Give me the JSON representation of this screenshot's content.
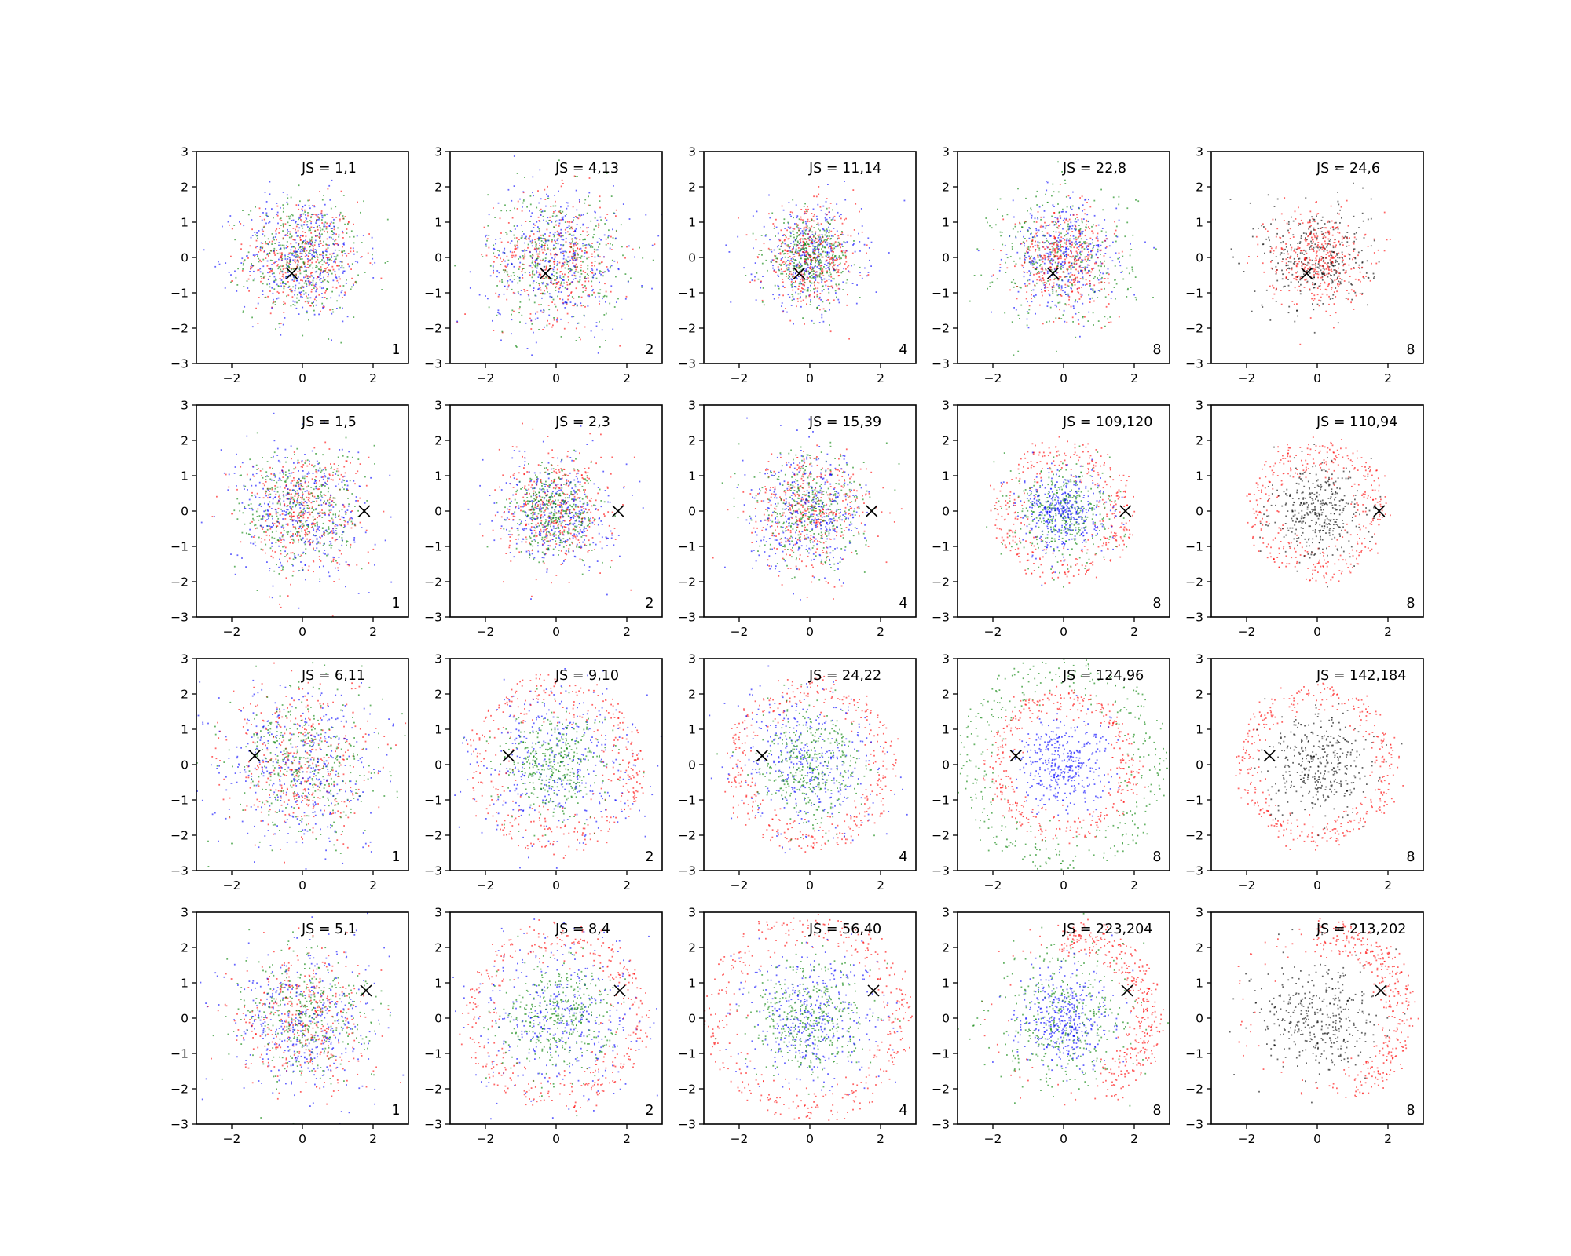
{
  "chart_data": {
    "type": "scatter",
    "layout": {
      "rows": 4,
      "cols": 5
    },
    "xlim": [
      -3,
      3
    ],
    "ylim": [
      -3,
      3
    ],
    "xticks": [
      -2,
      0,
      2
    ],
    "yticks": [
      -3,
      -2,
      -1,
      0,
      1,
      2,
      3
    ],
    "tick_labels": {
      "x": [
        "−2",
        "0",
        "2"
      ],
      "y": [
        "−3",
        "−2",
        "−1",
        "0",
        "1",
        "2",
        "3"
      ]
    },
    "grid": false,
    "colors": {
      "red": "#ff0000",
      "green": "#008000",
      "blue": "#0000ff",
      "black": "#000000"
    },
    "row_markers": [
      {
        "x": -0.3,
        "y": -0.45
      },
      {
        "x": 1.75,
        "y": 0.0
      },
      {
        "x": -1.35,
        "y": 0.25
      },
      {
        "x": 1.8,
        "y": 0.78
      }
    ],
    "panels": [
      {
        "row": 0,
        "col": 0,
        "js": "JS = 1,1",
        "k": "1",
        "distributions": [
          {
            "color": "red",
            "shape": "disk",
            "radius": 1.85
          },
          {
            "color": "green",
            "shape": "disk",
            "radius": 1.85
          },
          {
            "color": "blue",
            "shape": "disk",
            "radius": 2.05
          }
        ]
      },
      {
        "row": 0,
        "col": 1,
        "js": "JS = 4,13",
        "k": "2",
        "distributions": [
          {
            "color": "red",
            "shape": "disk",
            "radius": 2.0
          },
          {
            "color": "green",
            "shape": "disk",
            "radius": 2.2
          },
          {
            "color": "blue",
            "shape": "disk",
            "radius": 2.4
          }
        ]
      },
      {
        "row": 0,
        "col": 2,
        "js": "JS = 11,14",
        "k": "4",
        "distributions": [
          {
            "color": "blue",
            "shape": "disk",
            "radius": 1.7
          },
          {
            "color": "red",
            "shape": "disk",
            "radius": 1.55
          },
          {
            "color": "green",
            "shape": "disk",
            "radius": 1.25
          }
        ]
      },
      {
        "row": 0,
        "col": 3,
        "js": "JS = 22,8",
        "k": "8",
        "distributions": [
          {
            "color": "green",
            "shape": "disk",
            "radius": 2.3
          },
          {
            "color": "blue",
            "shape": "disk",
            "radius": 1.8
          },
          {
            "color": "red",
            "shape": "disk",
            "radius": 1.55
          }
        ]
      },
      {
        "row": 0,
        "col": 4,
        "js": "JS = 24,6",
        "k": "8",
        "distributions": [
          {
            "color": "black",
            "shape": "disk",
            "radius": 1.75
          },
          {
            "color": "red",
            "shape": "disk",
            "radius": 1.6
          }
        ]
      },
      {
        "row": 1,
        "col": 0,
        "js": "JS = 1,5",
        "k": "1",
        "distributions": [
          {
            "color": "red",
            "shape": "disk",
            "radius": 2.0
          },
          {
            "color": "green",
            "shape": "disk",
            "radius": 2.0
          },
          {
            "color": "blue",
            "shape": "disk",
            "radius": 2.2
          }
        ]
      },
      {
        "row": 1,
        "col": 1,
        "js": "JS = 2,3",
        "k": "2",
        "distributions": [
          {
            "color": "red",
            "shape": "disk",
            "radius": 1.8
          },
          {
            "color": "blue",
            "shape": "disk",
            "radius": 1.75
          },
          {
            "color": "green",
            "shape": "disk",
            "radius": 1.45
          }
        ]
      },
      {
        "row": 1,
        "col": 2,
        "js": "JS = 15,39",
        "k": "4",
        "distributions": [
          {
            "color": "red",
            "shape": "disk",
            "radius": 1.95
          },
          {
            "color": "green",
            "shape": "disk",
            "radius": 1.8
          },
          {
            "color": "blue",
            "shape": "disk",
            "radius": 1.9
          }
        ]
      },
      {
        "row": 1,
        "col": 3,
        "js": "JS = 109,120",
        "k": "8",
        "distributions": [
          {
            "color": "red",
            "shape": "ring",
            "inner": 0.9,
            "outer": 1.95
          },
          {
            "color": "green",
            "shape": "disk",
            "radius": 1.6
          },
          {
            "color": "blue",
            "shape": "disk",
            "radius": 1.3
          }
        ]
      },
      {
        "row": 1,
        "col": 4,
        "js": "JS = 110,94",
        "k": "8",
        "distributions": [
          {
            "color": "red",
            "shape": "ring",
            "inner": 0.9,
            "outer": 1.95
          },
          {
            "color": "black",
            "shape": "disk",
            "radius": 1.45
          }
        ]
      },
      {
        "row": 2,
        "col": 0,
        "js": "JS = 6,11",
        "k": "1",
        "distributions": [
          {
            "color": "red",
            "shape": "disk",
            "radius": 2.4
          },
          {
            "color": "green",
            "shape": "disk",
            "radius": 2.4
          },
          {
            "color": "blue",
            "shape": "disk",
            "radius": 2.6
          }
        ]
      },
      {
        "row": 2,
        "col": 1,
        "js": "JS = 9,10",
        "k": "2",
        "distributions": [
          {
            "color": "blue",
            "shape": "disk",
            "radius": 2.75
          },
          {
            "color": "red",
            "shape": "ring",
            "inner": 1.2,
            "outer": 2.5
          },
          {
            "color": "green",
            "shape": "disk",
            "radius": 1.7
          }
        ]
      },
      {
        "row": 2,
        "col": 2,
        "js": "JS = 24,22",
        "k": "4",
        "distributions": [
          {
            "color": "red",
            "shape": "ring",
            "inner": 1.5,
            "outer": 2.4
          },
          {
            "color": "blue",
            "shape": "disk",
            "radius": 2.3
          },
          {
            "color": "green",
            "shape": "disk",
            "radius": 1.7
          }
        ]
      },
      {
        "row": 2,
        "col": 3,
        "js": "JS = 124,96",
        "k": "8",
        "distributions": [
          {
            "color": "green",
            "shape": "ring",
            "inner": 1.7,
            "outer": 3.0
          },
          {
            "color": "red",
            "shape": "ring",
            "inner": 1.3,
            "outer": 2.1
          },
          {
            "color": "blue",
            "shape": "disk",
            "radius": 1.5
          }
        ]
      },
      {
        "row": 2,
        "col": 4,
        "js": "JS = 142,184",
        "k": "8",
        "distributions": [
          {
            "color": "red",
            "shape": "ring",
            "inner": 1.5,
            "outer": 2.2
          },
          {
            "color": "black",
            "shape": "disk",
            "radius": 1.6
          }
        ]
      },
      {
        "row": 3,
        "col": 0,
        "js": "JS = 5,1",
        "k": "1",
        "distributions": [
          {
            "color": "red",
            "shape": "disk",
            "radius": 2.2
          },
          {
            "color": "green",
            "shape": "disk",
            "radius": 2.2
          },
          {
            "color": "blue",
            "shape": "disk",
            "radius": 2.4
          }
        ]
      },
      {
        "row": 3,
        "col": 1,
        "js": "JS = 8,4",
        "k": "2",
        "distributions": [
          {
            "color": "blue",
            "shape": "disk",
            "radius": 2.8
          },
          {
            "color": "red",
            "shape": "ring",
            "inner": 1.4,
            "outer": 2.6
          },
          {
            "color": "green",
            "shape": "disk",
            "radius": 1.8
          }
        ]
      },
      {
        "row": 3,
        "col": 2,
        "js": "JS = 56,40",
        "k": "4",
        "distributions": [
          {
            "color": "red",
            "shape": "ring",
            "inner": 1.9,
            "outer": 2.9
          },
          {
            "color": "blue",
            "shape": "disk",
            "radius": 2.2
          },
          {
            "color": "green",
            "shape": "disk",
            "radius": 1.9
          }
        ]
      },
      {
        "row": 3,
        "col": 3,
        "js": "JS = 223,204",
        "k": "8",
        "distributions": [
          {
            "color": "red",
            "shape": "crescent",
            "inner": 1.8,
            "outer": 2.6
          },
          {
            "color": "green",
            "shape": "disk",
            "radius": 2.3
          },
          {
            "color": "blue",
            "shape": "disk",
            "radius": 1.6
          }
        ]
      },
      {
        "row": 3,
        "col": 4,
        "js": "JS = 213,202",
        "k": "8",
        "distributions": [
          {
            "color": "red",
            "shape": "crescent",
            "inner": 1.8,
            "outer": 2.6
          },
          {
            "color": "black",
            "shape": "disk",
            "radius": 1.8
          }
        ]
      }
    ]
  }
}
